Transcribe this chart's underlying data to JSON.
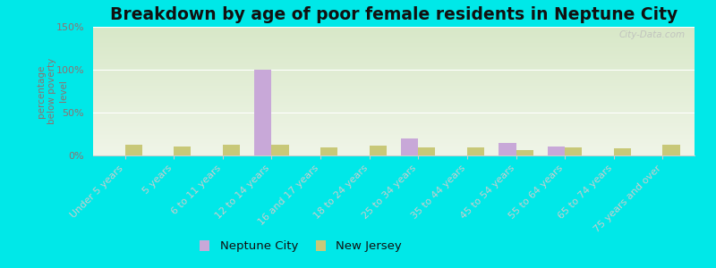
{
  "title": "Breakdown by age of poor female residents in Neptune City",
  "ylabel": "percentage\nbelow poverty\nlevel",
  "categories": [
    "Under 5 years",
    "5 years",
    "6 to 11 years",
    "12 to 14 years",
    "16 and 17 years",
    "18 to 24 years",
    "25 to 34 years",
    "35 to 44 years",
    "45 to 54 years",
    "55 to 64 years",
    "65 to 74 years",
    "75 years and over"
  ],
  "neptune_city": [
    0,
    0,
    0,
    100,
    0,
    0,
    20,
    0,
    15,
    10,
    0,
    0
  ],
  "new_jersey": [
    12,
    10,
    13,
    13,
    9,
    11,
    9,
    9,
    6,
    9,
    8,
    12
  ],
  "neptune_color": "#c8a8d8",
  "nj_color": "#c8c878",
  "ylim": [
    0,
    150
  ],
  "yticks": [
    0,
    50,
    100,
    150
  ],
  "ytick_labels": [
    "0%",
    "50%",
    "100%",
    "150%"
  ],
  "bg_color_top": "#e8ede0",
  "bg_color_bottom": "#f2f8e8",
  "outer_bg": "#00e8e8",
  "bar_width": 0.35,
  "title_fontsize": 13.5,
  "axis_label_fontsize": 7.5,
  "tick_fontsize": 8,
  "legend_fontsize": 9.5,
  "watermark": "City-Data.com",
  "legend_nc_label": "Neptune City",
  "legend_nj_label": "New Jersey"
}
